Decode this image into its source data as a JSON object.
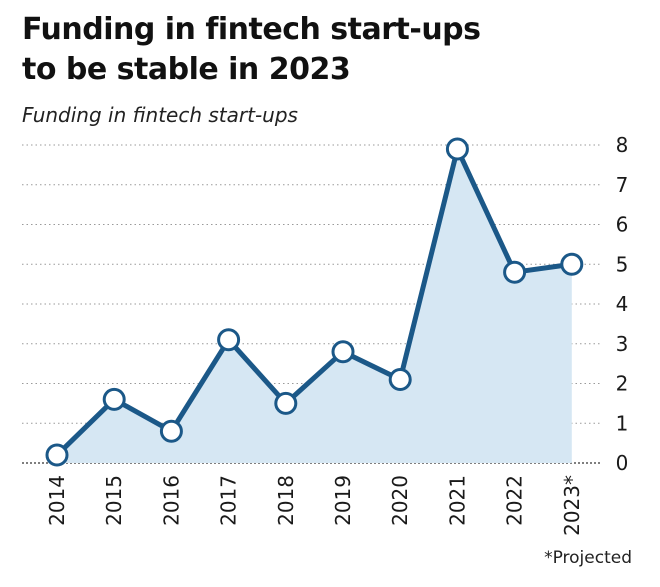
{
  "title_line1": "Funding in fintech start-ups",
  "title_line2": "to be stable in 2023",
  "subtitle": "Funding in fintech start-ups",
  "footnote": "*Projected",
  "colors": {
    "line": "#1b5888",
    "area": "#d6e7f3",
    "grid": "#9a9a9a",
    "marker_fill": "#ffffff"
  },
  "chart_data": {
    "type": "area",
    "title": "Funding in fintech start-ups to be stable in 2023",
    "subtitle": "Funding in fintech start-ups",
    "categories": [
      "2014",
      "2015",
      "2016",
      "2017",
      "2018",
      "2019",
      "2020",
      "2021",
      "2022",
      "2023*"
    ],
    "series": [
      {
        "values": [
          0.2,
          1.6,
          0.8,
          3.1,
          1.5,
          2.8,
          2.1,
          7.9,
          4.8,
          5.0
        ]
      }
    ],
    "ylim": [
      0,
      8
    ],
    "yticks": [
      "0",
      "1",
      "2",
      "3",
      "4",
      "5",
      "6",
      "7",
      "8"
    ],
    "grid": true,
    "y_axis_position": "right",
    "markers": "open-circle",
    "footnote": "*Projected"
  }
}
